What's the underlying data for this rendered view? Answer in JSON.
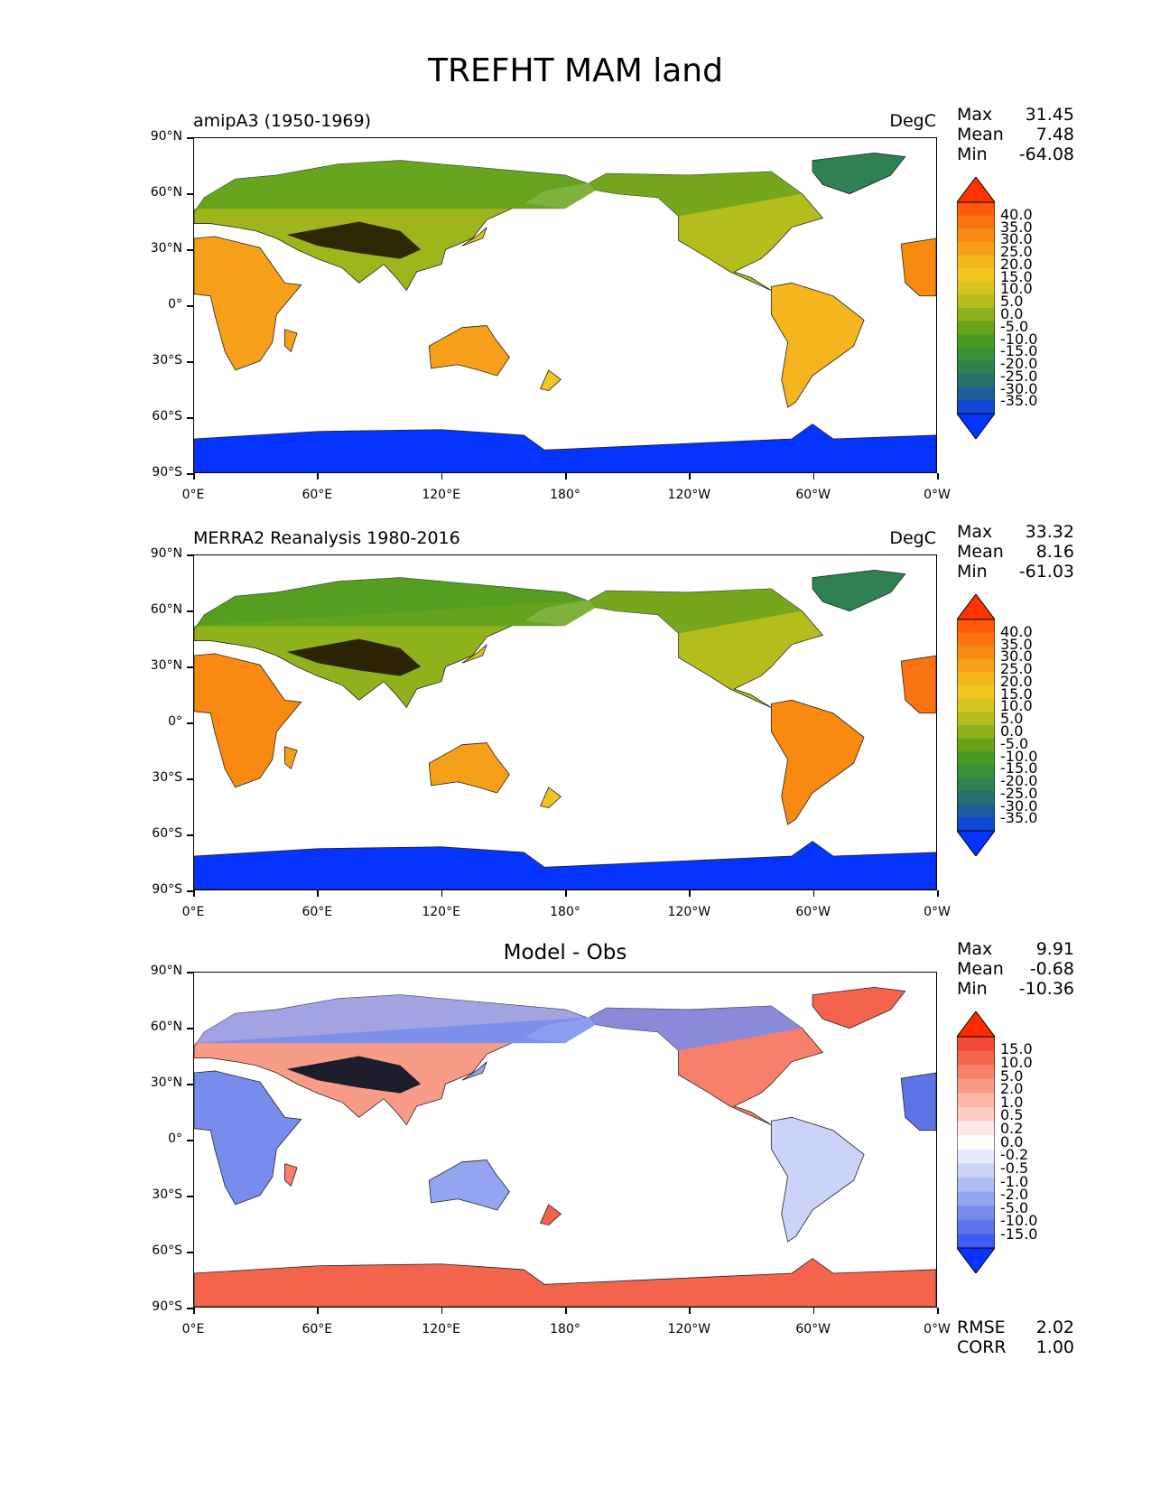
{
  "title": "TREFHT MAM land",
  "lat_labels": [
    "90°N",
    "60°N",
    "30°N",
    "0°",
    "30°S",
    "60°S",
    "90°S"
  ],
  "lon_labels": [
    "0°E",
    "60°E",
    "120°E",
    "180°",
    "120°W",
    "60°W",
    "0°W"
  ],
  "panels": [
    {
      "left_label": "amipA3 (1950-1969)",
      "right_label": "DegC",
      "center_label": "",
      "stats": [
        {
          "label": "Max",
          "value": "31.45"
        },
        {
          "label": "Mean",
          "value": "7.48"
        },
        {
          "label": "Min",
          "value": "-64.08"
        }
      ],
      "colorbar": {
        "labels": [
          "40.0",
          "35.0",
          "30.0",
          "25.0",
          "20.0",
          "15.0",
          "10.0",
          "5.0",
          "0.0",
          "-5.0",
          "-10.0",
          "-15.0",
          "-20.0",
          "-25.0",
          "-30.0",
          "-35.0"
        ],
        "colors": [
          "#ff3300",
          "#ff5a0a",
          "#fb7310",
          "#f88a12",
          "#f6a01a",
          "#f4b51f",
          "#f2c520",
          "#d8c41e",
          "#b5bd1d",
          "#8fb21c",
          "#68a31b",
          "#4b9a22",
          "#3a8f3a",
          "#2f8152",
          "#257170",
          "#1f5c9a",
          "#1147d6",
          "#0533ff"
        ]
      },
      "footer": []
    },
    {
      "left_label": "MERRA2 Reanalysis 1980-2016",
      "right_label": "DegC",
      "center_label": "",
      "stats": [
        {
          "label": "Max",
          "value": "33.32"
        },
        {
          "label": "Mean",
          "value": "8.16"
        },
        {
          "label": "Min",
          "value": "-61.03"
        }
      ],
      "colorbar": {
        "labels": [
          "40.0",
          "35.0",
          "30.0",
          "25.0",
          "20.0",
          "15.0",
          "10.0",
          "5.0",
          "0.0",
          "-5.0",
          "-10.0",
          "-15.0",
          "-20.0",
          "-25.0",
          "-30.0",
          "-35.0"
        ],
        "colors": [
          "#ff3300",
          "#ff5a0a",
          "#fb7310",
          "#f88a12",
          "#f6a01a",
          "#f4b51f",
          "#f2c520",
          "#d8c41e",
          "#b5bd1d",
          "#8fb21c",
          "#68a31b",
          "#4b9a22",
          "#3a8f3a",
          "#2f8152",
          "#257170",
          "#1f5c9a",
          "#1147d6",
          "#0533ff"
        ]
      },
      "footer": []
    },
    {
      "left_label": "",
      "right_label": "",
      "center_label": "Model - Obs",
      "stats": [
        {
          "label": "Max",
          "value": "9.91"
        },
        {
          "label": "Mean",
          "value": "-0.68"
        },
        {
          "label": "Min",
          "value": "-10.36"
        }
      ],
      "colorbar": {
        "labels": [
          "15.0",
          "10.0",
          "5.0",
          "2.0",
          "1.0",
          "0.5",
          "0.2",
          "0.0",
          "-0.2",
          "-0.5",
          "-1.0",
          "-2.0",
          "-5.0",
          "-10.0",
          "-15.0"
        ],
        "colors": [
          "#ff2a00",
          "#f24a34",
          "#f4644c",
          "#f6806a",
          "#f89c88",
          "#faB6a6",
          "#fccdc2",
          "#feeae4",
          "#ffffff",
          "#e6eafc",
          "#cbd4f8",
          "#afbcf4",
          "#93a4f0",
          "#778cec",
          "#5b74e8",
          "#3e5cf4",
          "#0a33ff"
        ]
      },
      "footer": [
        {
          "label": "RMSE",
          "value": "2.02"
        },
        {
          "label": "CORR",
          "value": "1.00"
        }
      ]
    }
  ]
}
